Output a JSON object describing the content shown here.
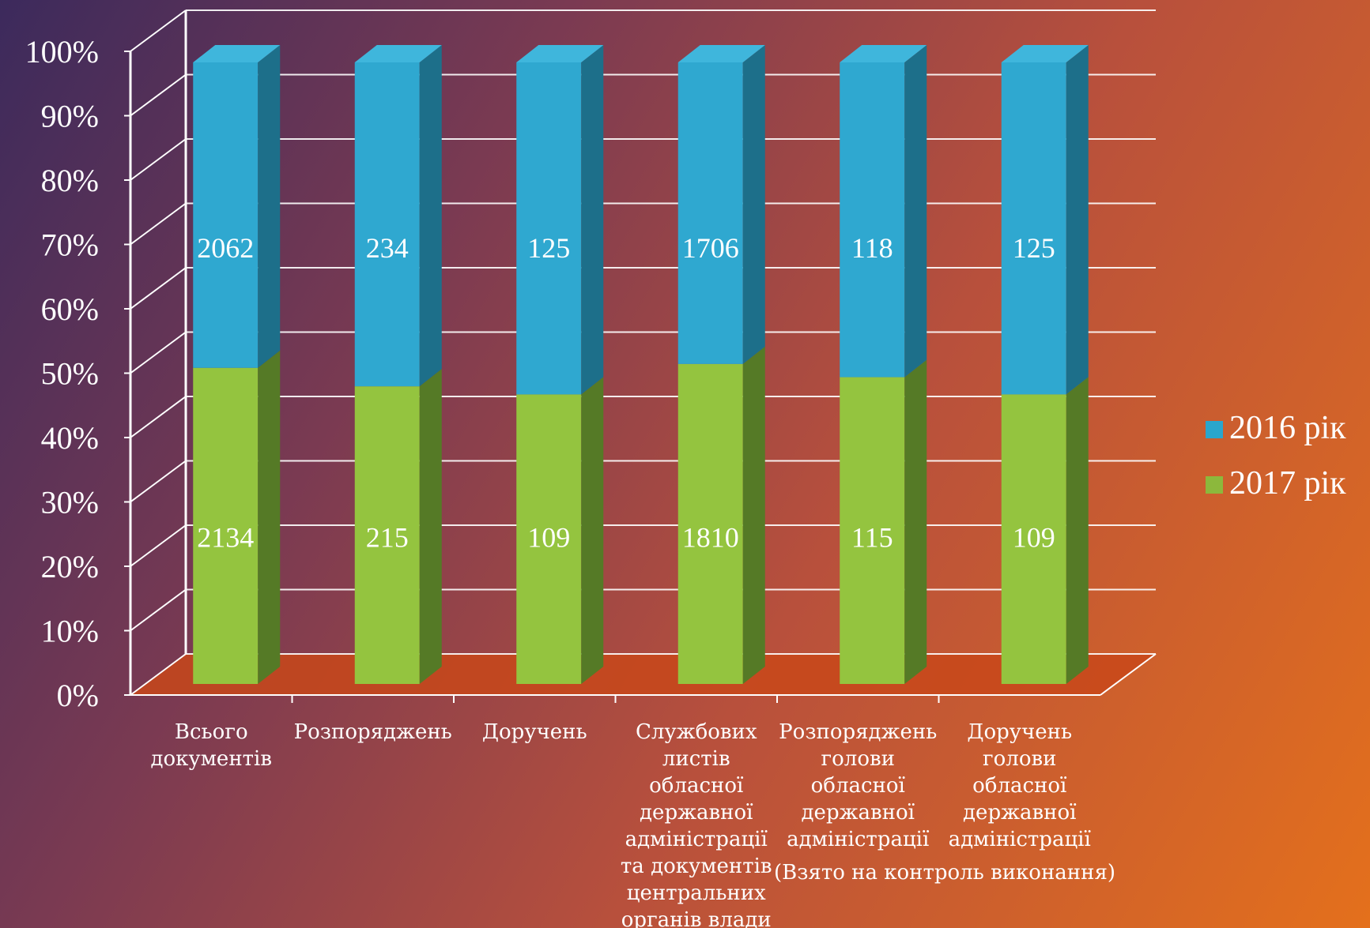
{
  "chart_data": {
    "type": "bar",
    "stacked": "percent",
    "categories": [
      [
        "Всього",
        "документів"
      ],
      [
        "Розпоряджень"
      ],
      [
        "Доручень"
      ],
      [
        "Службових",
        "листів",
        "обласної",
        "державної",
        "адміністрації",
        "та документів",
        "центральних",
        "органів влади"
      ],
      [
        "Розпоряджень",
        "голови",
        "обласної",
        "державної",
        "адміністрації"
      ],
      [
        "Доручень",
        "голови",
        "обласної",
        "державної",
        "адміністрації"
      ]
    ],
    "series": [
      {
        "name": "2017 рік",
        "values": [
          2134,
          215,
          109,
          1810,
          115,
          109
        ],
        "color": "#8cb83c"
      },
      {
        "name": "2016 рік",
        "values": [
          2062,
          234,
          125,
          1706,
          118,
          125
        ],
        "color": "#2aa6cc"
      }
    ],
    "yticks": [
      "0%",
      "10%",
      "20%",
      "30%",
      "40%",
      "50%",
      "60%",
      "70%",
      "80%",
      "90%",
      "100%"
    ],
    "ylim": [
      0,
      100
    ],
    "grid": true,
    "legend": "right",
    "annotation": "(Взято на контроль виконання)"
  }
}
